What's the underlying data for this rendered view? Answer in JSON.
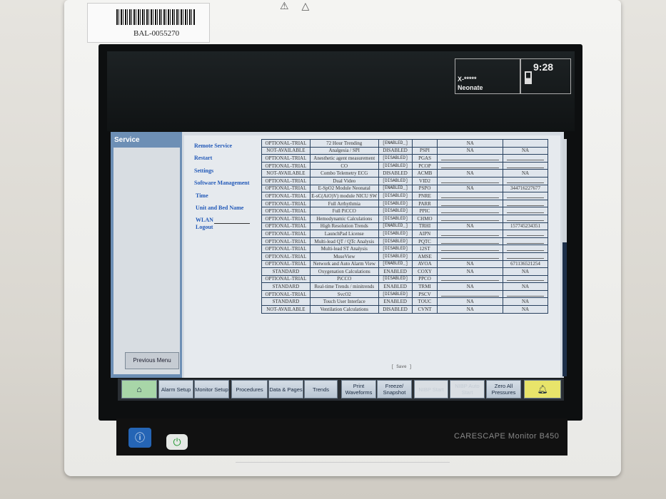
{
  "asset_label": "BAL-0055270",
  "header": {
    "patient_id": "X-*****",
    "patient_type": "Neonate",
    "time": "9:28"
  },
  "service": {
    "title": "Service",
    "previous_menu": "Previous Menu",
    "menu": [
      "Remote Service",
      "Restart",
      "Settings",
      "Software Management",
      "Time",
      "Unit and Bed Name",
      "WLAN",
      "Logout"
    ],
    "save_label": "[ Save ]"
  },
  "table": [
    [
      "OPTIONAL-TRIAL",
      "72 Hour Trending",
      "[ENABLED_]",
      "",
      "NA",
      ""
    ],
    [
      "NOT-AVAILABLE",
      "Analgesia / SPI",
      "DISABLED",
      "PSPI",
      "NA",
      "NA"
    ],
    [
      "OPTIONAL-TRIAL",
      "Anesthetic agent measurement",
      "[DISABLED]",
      "PGAS",
      "",
      ""
    ],
    [
      "OPTIONAL-TRIAL",
      "CO",
      "[DISABLED]",
      "PCOP",
      "",
      ""
    ],
    [
      "NOT-AVAILABLE",
      "Combo Telemetry ECG",
      "DISABLED",
      "ACMB",
      "NA",
      "NA"
    ],
    [
      "OPTIONAL-TRIAL",
      "Dual Video",
      "[DISABLED]",
      "VID2",
      "",
      ""
    ],
    [
      "OPTIONAL-TRIAL",
      "E-SpO2 Module Neonatal",
      "[ENABLED_]",
      "PSPO",
      "NA",
      "344716227677"
    ],
    [
      "OPTIONAL-TRIAL",
      "E-sC(AiO)V) module NICU SW",
      "[DISABLED]",
      "PNRE",
      "",
      ""
    ],
    [
      "OPTIONAL-TRIAL",
      "Full Arrhythmia",
      "[DISABLED]",
      "PARR",
      "",
      ""
    ],
    [
      "OPTIONAL-TRIAL",
      "Full PiCCO",
      "[DISABLED]",
      "PPIC",
      "",
      ""
    ],
    [
      "OPTIONAL-TRIAL",
      "Hemodynamic Calculations",
      "[DISABLED]",
      "CHMO",
      "",
      ""
    ],
    [
      "OPTIONAL-TRIAL",
      "High Resolution Trends",
      "[ENABLED_]",
      "TRHI",
      "NA",
      "157745234351"
    ],
    [
      "OPTIONAL-TRIAL",
      "LaunchPad License",
      "[DISABLED]",
      "AIPN",
      "",
      ""
    ],
    [
      "OPTIONAL-TRIAL",
      "Multi-lead QT / QTc Analysis",
      "[DISABLED]",
      "PQTC",
      "",
      ""
    ],
    [
      "OPTIONAL-TRIAL",
      "Multi-lead ST Analysis",
      "[DISABLED]",
      "12ST",
      "",
      ""
    ],
    [
      "OPTIONAL-TRIAL",
      "MuseView",
      "[DISABLED]",
      "AMSE",
      "",
      ""
    ],
    [
      "OPTIONAL-TRIAL",
      "Network and Auto Alarm View",
      "[ENABLED_]",
      "AVOA",
      "NA",
      "671136521254"
    ],
    [
      "STANDARD",
      "Oxygenation Calculations",
      "ENABLED",
      "COXY",
      "NA",
      "NA"
    ],
    [
      "OPTIONAL-TRIAL",
      "PiCCO",
      "[DISABLED]",
      "PPCO",
      "",
      ""
    ],
    [
      "STANDARD",
      "Real-time Trends / minitrends",
      "ENABLED",
      "TRMI",
      "NA",
      "NA"
    ],
    [
      "OPTIONAL-TRIAL",
      "SvcO2",
      "[DISABLED]",
      "PSCV",
      "",
      ""
    ],
    [
      "STANDARD",
      "Touch User Interface",
      "ENABLED",
      "TOUC",
      "NA",
      "NA"
    ],
    [
      "NOT-AVAILABLE",
      "Ventilation Calculations",
      "DISABLED",
      "CVNT",
      "NA",
      "NA"
    ]
  ],
  "buttons": [
    {
      "label": "",
      "icon": "home-icon",
      "enabled": true
    },
    {
      "label": "Alarm Setup",
      "enabled": true
    },
    {
      "label": "Monitor Setup",
      "enabled": true
    },
    {
      "label": "Procedures",
      "enabled": true
    },
    {
      "label": "Data & Pages",
      "enabled": true
    },
    {
      "label": "Trends",
      "enabled": true
    },
    {
      "label": "Print Waveforms",
      "enabled": true
    },
    {
      "label": "Freeze/ Snapshot",
      "enabled": true
    },
    {
      "label": "NIBP Start",
      "enabled": false
    },
    {
      "label": "NIBP Auto Start",
      "enabled": false
    },
    {
      "label": "Zero All Pressures",
      "enabled": true
    },
    {
      "label": "",
      "icon": "alarm-bell-icon",
      "enabled": true
    }
  ],
  "device": {
    "model": "CARESCAPE Monitor B450"
  },
  "colors": {
    "home_button": "#a8d6a8",
    "alarm_button": "#e8e46a",
    "menu_link": "#2259b8",
    "service_header": "#6d8fb5"
  }
}
